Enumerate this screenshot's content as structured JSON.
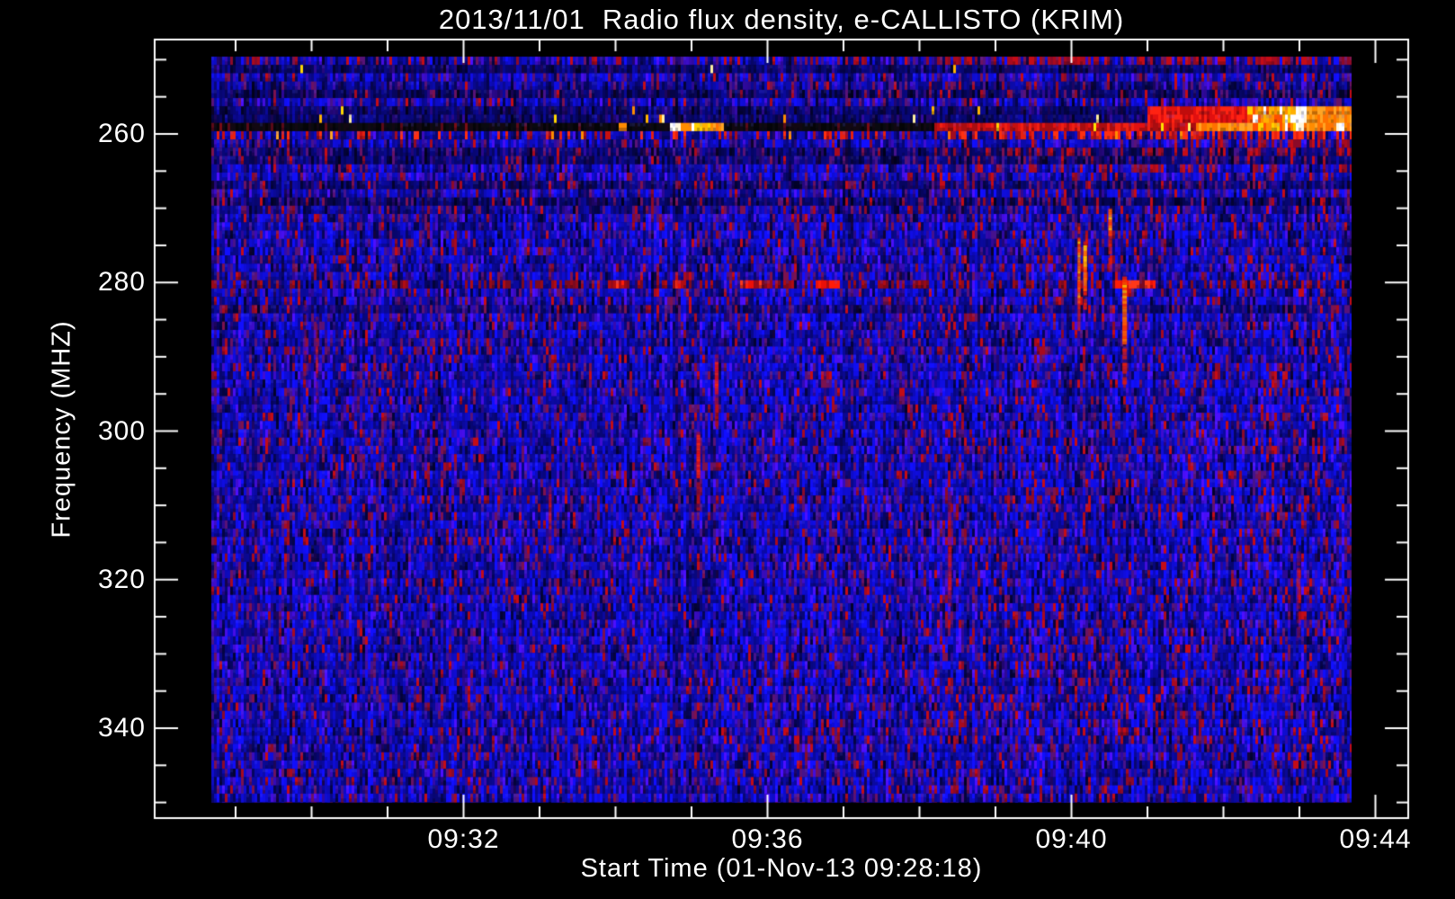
{
  "chart_data": {
    "type": "heatmap",
    "title": "2013/11/01  Radio flux density, e-CALLISTO (KRIM)",
    "xlabel": "Start Time (01-Nov-13 09:28:18)",
    "ylabel": "Frequency (MHZ)",
    "date": "2013/11/01",
    "instrument": "e-CALLISTO (KRIM)",
    "start_time": "09:28:18",
    "time_span_minutes": 15,
    "freq_range_mhz": [
      250,
      350
    ],
    "grid": false,
    "legend": false,
    "colors": {
      "background": "#000000",
      "frame": "#ffffff",
      "text": "#ffffff",
      "base_noise": "blue"
    },
    "x_axis": {
      "unit": "time UT, minutes after 09:28:00",
      "major_ticks": [
        {
          "label": "09:32",
          "minute": 4
        },
        {
          "label": "09:36",
          "minute": 8
        },
        {
          "label": "09:40",
          "minute": 12
        },
        {
          "label": "09:44",
          "minute": 16
        }
      ],
      "minor_tick_minutes": [
        1,
        2,
        3,
        5,
        6,
        7,
        9,
        10,
        11,
        13,
        14,
        15
      ],
      "data_start_minute": 0.68,
      "data_end_minute": 15.69
    },
    "y_axis": {
      "unit": "MHz",
      "direction": "increasing downward",
      "major_ticks": [
        {
          "label": "260",
          "value": 260
        },
        {
          "label": "280",
          "value": 280
        },
        {
          "label": "300",
          "value": 300
        },
        {
          "label": "320",
          "value": 320
        },
        {
          "label": "340",
          "value": 340
        }
      ],
      "minor_tick_values": [
        250,
        255,
        265,
        270,
        275,
        285,
        290,
        295,
        305,
        310,
        315,
        325,
        330,
        335,
        345,
        350
      ],
      "minor_step_mhz": 5
    },
    "palettes": {
      "white": [
        "#ffffff",
        "#fff6dc"
      ],
      "yellow": [
        "#ffe000",
        "#ffd200",
        "#fff26a"
      ],
      "orange": [
        "#ff8c00",
        "#ff7200",
        "#ffa424"
      ],
      "red": [
        "#e01010",
        "#ff2212",
        "#c00c0c"
      ],
      "hotmix": [
        "#ff8c00",
        "#ffd000",
        "#ffffff",
        "#ff5000",
        "#ffb000"
      ],
      "spike": [
        "#ffb400",
        "#ffd700",
        "#ff8c00",
        "#fff0a0"
      ],
      "dark": [
        "#050507",
        "#0a0a10",
        "#120812"
      ],
      "darkred_bits": [
        "#5a0a18",
        "#7a0c14"
      ],
      "line_red": [
        "#c41010",
        "#e01212",
        "#f02012",
        "#a80d10"
      ],
      "rfi_red": [
        "#7a0a20",
        "#960a18",
        "#b00c12"
      ],
      "rfi_bright": [
        "#ff1c08",
        "#ea1008",
        "#ff3818"
      ],
      "burst_red": [
        "#c81010",
        "#e62010",
        "#a00c20",
        "#ff3010"
      ],
      "speck_red": [
        "#8c0a28",
        "#a80a1e",
        "#c40c16"
      ],
      "speck_purple": [
        "#46128c",
        "#581277",
        "#6a1262",
        "#7c124e"
      ],
      "shaft": "#b80f16",
      "shaft_hot": "#e01a0a",
      "core": [
        "#ee1212",
        "#ff2814"
      ],
      "core_hot": [
        "#ff5a00",
        "#ff7a00",
        "#ff3c00",
        "#ffc800"
      ]
    },
    "background_bands": [
      {
        "f0": 251.0,
        "f1": 252.3,
        "mult": 0.6
      },
      {
        "f0": 253.2,
        "f1": 254.3,
        "mult": 0.8
      },
      {
        "f0": 254.4,
        "f1": 255.6,
        "mult": 0.55
      },
      {
        "f0": 256.8,
        "f1": 258.2,
        "mult": 0.65
      },
      {
        "f0": 261.3,
        "f1": 263.9,
        "mult": 0.6
      },
      {
        "f0": 266.1,
        "f1": 267.5,
        "mult": 0.65
      },
      {
        "f0": 268.6,
        "f1": 270.1,
        "mult": 0.6
      },
      {
        "f0": 270.1,
        "f1": 271.2,
        "mult": 0.85
      },
      {
        "f0": 282.6,
        "f1": 284.6,
        "mult": 0.7
      },
      {
        "f0": 287.9,
        "f1": 289.0,
        "mult": 0.88
      }
    ],
    "red_noise_boosts": [
      {
        "f0": 249.5,
        "f1": 251.0,
        "t0": 10.2,
        "t1": 15.7,
        "p": 0.4
      },
      {
        "f0": 249.5,
        "f1": 251.0,
        "t0": 0.6,
        "t1": 10.2,
        "p": 0.1
      },
      {
        "f0": 261.3,
        "f1": 262.6,
        "t0": 10.2,
        "t1": 15.7,
        "p": 0.3
      },
      {
        "f0": 263.6,
        "f1": 264.8,
        "t0": 10.2,
        "t1": 15.7,
        "p": 0.15
      },
      {
        "f0": 260.35,
        "f1": 261.3,
        "t0": 13.5,
        "t1": 15.7,
        "p": 0.25
      }
    ],
    "spike_rows": [
      {
        "f0": 251.0,
        "f1": 252.3,
        "spike_p": 0.012
      },
      {
        "f0": 256.8,
        "f1": 258.2,
        "spike_p": 0.02,
        "right_band": {
          "t0": 13.0,
          "segments": [
            {
              "t0": 13.0,
              "t1": 14.3,
              "pal": "red"
            },
            {
              "t0": 14.3,
              "t1": 14.97,
              "pal": "hotmix"
            },
            {
              "t0": 14.97,
              "t1": 15.08,
              "pal": "white"
            },
            {
              "t0": 15.08,
              "t1": 15.69,
              "pal": "orange"
            }
          ]
        }
      }
    ],
    "burst_row": {
      "f0": 259.2,
      "f1": 260.35,
      "red_p_left": 0.26,
      "red_p_right": 0.45,
      "boundary_t": 8.19
    },
    "rfi_lines": {
      "line_258": {
        "f0": 258.2,
        "f1": 259.2,
        "black_until_t": 10.21,
        "segments": [
          {
            "t0": 6.03,
            "t1": 6.16,
            "pal": "orange"
          },
          {
            "t0": 6.72,
            "t1": 6.87,
            "pal": "white"
          },
          {
            "t0": 6.87,
            "t1": 7.27,
            "pal": "hotmix"
          },
          {
            "t0": 7.27,
            "t1": 7.44,
            "pal": "orange"
          },
          {
            "t0": 13.64,
            "t1": 14.37,
            "pal": "orange"
          },
          {
            "t0": 14.37,
            "t1": 14.94,
            "pal": "hotmix"
          },
          {
            "t0": 14.94,
            "t1": 15.05,
            "pal": "white"
          },
          {
            "t0": 15.05,
            "t1": 15.69,
            "pal": "orange"
          },
          {
            "t0": 15.49,
            "t1": 15.6,
            "pal": "white"
          }
        ]
      },
      "line_280": {
        "f0": 279.2,
        "f1": 280.6,
        "segments": [
          {
            "t0": 5.98,
            "t1": 6.14
          },
          {
            "t0": 6.78,
            "t1": 6.86
          },
          {
            "t0": 7.64,
            "t1": 7.91
          },
          {
            "t0": 8.65,
            "t1": 8.96
          },
          {
            "t0": 12.55,
            "t1": 13.12
          }
        ]
      }
    },
    "bursts": [
      {
        "t": 1.92,
        "f0": 282.4,
        "f1": 292.5,
        "a": 0.5,
        "w": 3,
        "glow": 8
      },
      {
        "t": 2.07,
        "f0": 284.6,
        "f1": 296.1,
        "a": 0.5,
        "w": 3,
        "glow": 10,
        "core": [
          288.6,
          292.2
        ]
      },
      {
        "t": 2.55,
        "f0": 284.0,
        "f1": 299.7,
        "a": 0.28,
        "w": 2,
        "glow": 4
      },
      {
        "t": 3.46,
        "f0": 267.1,
        "f1": 274.4,
        "a": 0.25,
        "w": 2,
        "glow": 3
      },
      {
        "t": 5.14,
        "f0": 306.9,
        "f1": 314.8,
        "a": 0.55,
        "w": 3,
        "glow": 5,
        "core": [
          308.5,
          313.0
        ]
      },
      {
        "t": 6.81,
        "f0": 278.6,
        "f1": 283.4,
        "a": 0.5,
        "w": 2,
        "glow": 3
      },
      {
        "t": 7.33,
        "f0": 289.7,
        "f1": 299.1,
        "a": 0.8,
        "w": 4,
        "glow": 6,
        "core": [
          290.7,
          294.8
        ]
      },
      {
        "t": 7.09,
        "f0": 300.1,
        "f1": 310.6,
        "a": 0.8,
        "w": 4,
        "glow": 6,
        "core": [
          300.5,
          306.1
        ]
      },
      {
        "t": 8.31,
        "f0": 310.0,
        "f1": 319.6,
        "a": 0.25,
        "w": 3,
        "glow": 4
      },
      {
        "t": 9.73,
        "f0": 278.6,
        "f1": 297.3,
        "a": 0.2,
        "w": 6,
        "glow": 14
      },
      {
        "t": 10.4,
        "f0": 308.1,
        "f1": 325.6,
        "a": 0.6,
        "w": 4,
        "glow": 6,
        "core": [
          315.6,
          321.1
        ]
      },
      {
        "t": 11.69,
        "f0": 276.2,
        "f1": 285.8,
        "a": 0.4,
        "w": 3,
        "glow": 6
      },
      {
        "t": 12.1,
        "f0": 272.0,
        "f1": 286.1,
        "a": 0.85,
        "w": 3,
        "glow": 5,
        "core": [
          274.1,
          282.8
        ],
        "hot": true
      },
      {
        "t": 12.18,
        "f0": 273.5,
        "f1": 283.4,
        "a": 0.9,
        "w": 4,
        "glow": 5,
        "core": [
          275.0,
          281.0
        ],
        "hot": true
      },
      {
        "t": 12.51,
        "f0": 269.9,
        "f1": 278.3,
        "a": 0.85,
        "w": 4,
        "glow": 5,
        "core": [
          270.1,
          273.5
        ],
        "hot": true
      },
      {
        "t": 12.7,
        "f0": 279.2,
        "f1": 293.7,
        "a": 0.9,
        "w": 5,
        "glow": 6,
        "core": [
          279.6,
          288.2
        ],
        "hot": true
      },
      {
        "t": 14.99,
        "f0": 316.2,
        "f1": 327.4,
        "a": 0.5,
        "w": 4,
        "glow": 6,
        "core": [
          318.4,
          323.0
        ]
      }
    ]
  }
}
